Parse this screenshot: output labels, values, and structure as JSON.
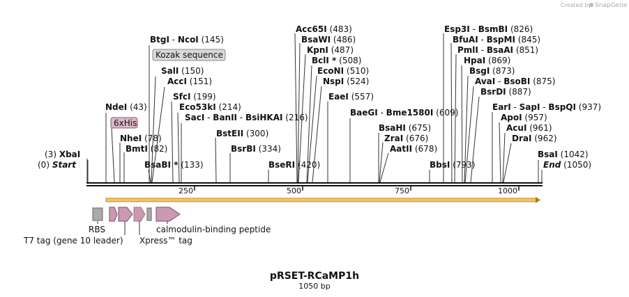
{
  "credit": "Created by",
  "credit_brand": "SnapGene",
  "title": "pRSET-RCaMP1h",
  "subtitle": "1050 bp",
  "sites": [
    {
      "name": "BtgI",
      "pos": 145,
      "suffix": "",
      "pair": "NcoI"
    },
    {
      "name": "SalI",
      "pos": 150
    },
    {
      "name": "AccI",
      "pos": 151
    },
    {
      "name": "SfcI",
      "pos": 199
    },
    {
      "name": "Eco53kI",
      "pos": 214
    },
    {
      "name": "SacI",
      "pos": 216,
      "pair": "BanII",
      "pair2": "BsiHKAI"
    },
    {
      "name": "NdeI",
      "pos": 43
    },
    {
      "name": "NheI",
      "pos": 78
    },
    {
      "name": "BmtI",
      "pos": 82
    },
    {
      "name": "BsaBI",
      "pos": 133,
      "star": "*"
    },
    {
      "name": "XbaI",
      "pos": 3
    },
    {
      "name": "BstEII",
      "pos": 300
    },
    {
      "name": "BsrBI",
      "pos": 334
    },
    {
      "name": "BseRI",
      "pos": 420
    },
    {
      "name": "Acc65I",
      "pos": 483
    },
    {
      "name": "BsaWI",
      "pos": 486
    },
    {
      "name": "KpnI",
      "pos": 487
    },
    {
      "name": "BclI",
      "pos": 508,
      "star": "*"
    },
    {
      "name": "EcoNI",
      "pos": 510
    },
    {
      "name": "NspI",
      "pos": 524
    },
    {
      "name": "EaeI",
      "pos": 557
    },
    {
      "name": "BaeGI",
      "pos": 609,
      "pair": "Bme1580I"
    },
    {
      "name": "BsaHI",
      "pos": 675
    },
    {
      "name": "ZraI",
      "pos": 676
    },
    {
      "name": "AatII",
      "pos": 678
    },
    {
      "name": "BbsI",
      "pos": 793
    },
    {
      "name": "Esp3I",
      "pos": 826,
      "pair": "BsmBI"
    },
    {
      "name": "BfuAI",
      "pos": 845,
      "pair": "BspMI"
    },
    {
      "name": "PmlI",
      "pos": 851,
      "pair": "BsaAI"
    },
    {
      "name": "HpaI",
      "pos": 869
    },
    {
      "name": "BsgI",
      "pos": 873
    },
    {
      "name": "AvaI",
      "pos": 875,
      "pair": "BsoBI"
    },
    {
      "name": "BsrDI",
      "pos": 887
    },
    {
      "name": "EarI",
      "pos": 937,
      "pair": "SapI",
      "pair2": "BspQI"
    },
    {
      "name": "ApoI",
      "pos": 957
    },
    {
      "name": "AcuI",
      "pos": 961
    },
    {
      "name": "DraI",
      "pos": 962
    },
    {
      "name": "BsaI",
      "pos": 1042
    }
  ],
  "start_label": "Start",
  "start_pos": "(0)",
  "end_label": "End",
  "end_pos": "(1050)",
  "features_top": [
    {
      "name": "Kozak sequence"
    },
    {
      "name": "6xHis"
    }
  ],
  "features_bottom": [
    {
      "name": "RBS"
    },
    {
      "name": "T7 tag (gene 10 leader)"
    },
    {
      "name": "Xpress™ tag"
    },
    {
      "name": "calmodulin-binding peptide"
    }
  ],
  "ruler": {
    "start": 0,
    "end": 1050,
    "ticks": [
      "250",
      "500",
      "750",
      "1000"
    ]
  },
  "colors": {
    "feature_fill": "#c99ab2",
    "feature_stroke": "#7a4a62",
    "grey_feature": "#aaaaaa",
    "orf_fill": "#f3c56a",
    "orf_stroke": "#b27a10",
    "pill_fill": "#d9d9d9"
  }
}
